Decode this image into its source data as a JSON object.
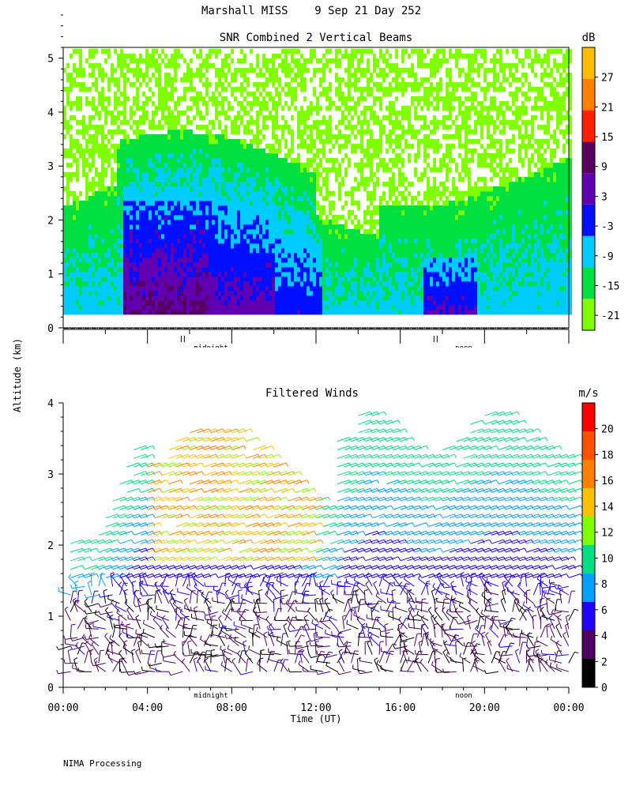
{
  "header": {
    "title": "Marshall MISS    9 Sep 21 Day 252"
  },
  "footer": {
    "credit": "NIMA Processing"
  },
  "shared": {
    "ylabel": "Altitude (km)",
    "xlabel": "Time (UT)"
  },
  "colors": {
    "snr_palette": [
      "#80ff00",
      "#00e040",
      "#00ccff",
      "#0010ff",
      "#6000b0",
      "#580060",
      "#ff2000",
      "#ff8000",
      "#ffbf00"
    ],
    "wind_palette": [
      "#000000",
      "#500060",
      "#2000ff",
      "#00a0ff",
      "#00e080",
      "#80ff00",
      "#ffc000",
      "#ff8000",
      "#ff5000",
      "#ff0000"
    ]
  },
  "chart_data": [
    {
      "type": "heatmap",
      "title": "SNR Combined 2 Vertical Beams",
      "ylabel": "Altitude (km)",
      "ylim": [
        0,
        5.2
      ],
      "yticks": [
        0,
        1,
        2,
        3,
        4,
        5
      ],
      "xlim": [
        0,
        24
      ],
      "day_markers": [
        "midnight",
        "noon"
      ],
      "colorbar": {
        "label": "dB",
        "range": [
          -24,
          33
        ],
        "ticks": [
          -21,
          -15,
          -9,
          -3,
          3,
          9,
          15,
          21,
          27
        ]
      },
      "z_unit": "dB",
      "description_values": {
        "noise_floor": -21,
        "boundary_layer_max": 12
      }
    },
    {
      "type": "scatter",
      "subtype": "wind-barbs",
      "title": "Filtered Winds",
      "xlabel": "Time (UT)",
      "ylabel": "Altitude (km)",
      "ylim": [
        0,
        4
      ],
      "yticks": [
        0,
        1,
        2,
        3,
        4
      ],
      "xlim": [
        0,
        24
      ],
      "xticks": [
        "00:00",
        "04:00",
        "08:00",
        "12:00",
        "16:00",
        "20:00",
        "00:00"
      ],
      "day_markers": [
        "midnight",
        "noon"
      ],
      "colorbar": {
        "label": "m/s",
        "range": [
          0,
          22
        ],
        "ticks": [
          0,
          2,
          4,
          6,
          8,
          10,
          12,
          14,
          16,
          18,
          20
        ]
      }
    }
  ]
}
